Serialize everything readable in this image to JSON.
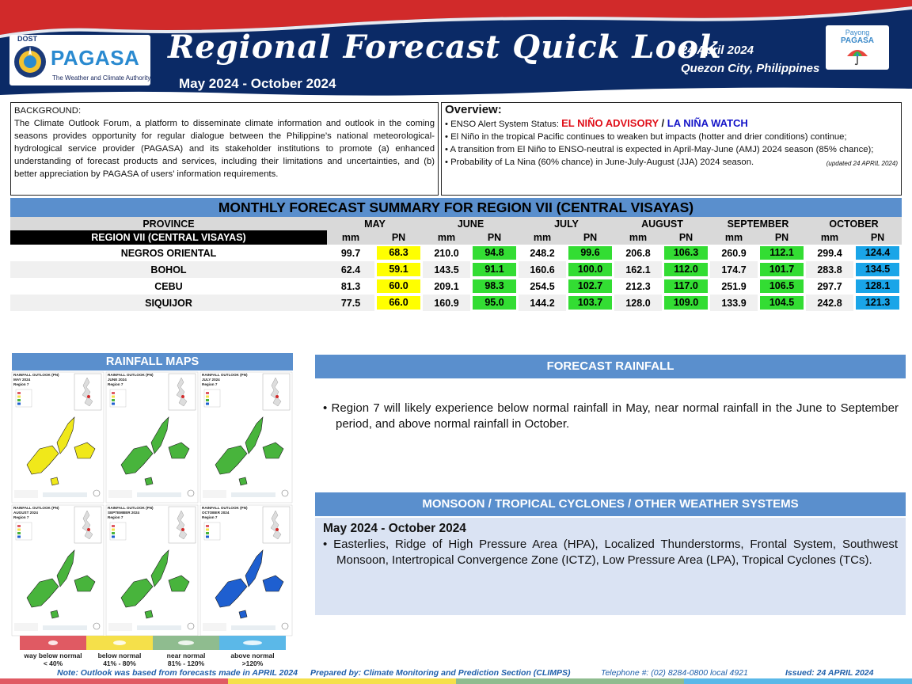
{
  "header": {
    "dost": "DOST",
    "pagasa": "PAGASA",
    "tagline": "The Weather and Climate Authority",
    "title": "Regional Forecast Quick Look",
    "period": "May 2024 - October 2024",
    "date": "24 April 2024",
    "place": "Quezon City, Philippines",
    "payong_line1": "Payong",
    "payong_line2": "PAGASA",
    "colors": {
      "navy": "#0b2a66",
      "red": "#d12a2a"
    }
  },
  "background": {
    "title": "BACKGROUND:",
    "text": "The Climate Outlook Forum, a platform to disseminate climate information and outlook in the coming seasons provides opportunity for regular dialogue between the Philippine’s national meteorological-hydrological service provider (PAGASA) and its stakeholder institutions to promote (a) enhanced understanding of forecast products and services, including their limitations and uncertainties, and (b) better appreciation by PAGASA of users’ information requirements."
  },
  "overview": {
    "title": "Overview:",
    "enso_prefix": "• ENSO Alert System Status: ",
    "enso_advisory": "EL NIÑO ADVISORY",
    "enso_sep": " / ",
    "enso_watch": "LA NIÑA WATCH",
    "bullet1": "• El Niño in the tropical Pacific continues to weaken but impacts (hotter and drier conditions) continue;",
    "bullet2": "• A transition from El Niño to ENSO-neutral is expected in April-May-June (AMJ) 2024 season (85% chance);",
    "bullet3": "• Probability of La Nina (60% chance) in June-July-August (JJA) 2024 season.",
    "updated": "(updated 24 APRIL 2024)"
  },
  "table": {
    "title": "MONTHLY FORECAST SUMMARY FOR REGION VII (CENTRAL VISAYAS)",
    "province_header": "PROVINCE",
    "region_label": "REGION VII (CENTRAL VISAYAS)",
    "mm_label": "mm",
    "pn_label": "PN",
    "months": [
      "MAY",
      "JUNE",
      "JULY",
      "AUGUST",
      "SEPTEMBER",
      "OCTOBER"
    ],
    "category_colors": {
      "below_normal": "#ffff00",
      "near_normal": "#33dd33",
      "above_normal": "#1aa5e8"
    },
    "rows": [
      {
        "province": "NEGROS ORIENTAL",
        "values": [
          [
            "99.7",
            "68.3",
            "below_normal"
          ],
          [
            "210.0",
            "94.8",
            "near_normal"
          ],
          [
            "248.2",
            "99.6",
            "near_normal"
          ],
          [
            "206.8",
            "106.3",
            "near_normal"
          ],
          [
            "260.9",
            "112.1",
            "near_normal"
          ],
          [
            "299.4",
            "124.4",
            "above_normal"
          ]
        ]
      },
      {
        "province": "BOHOL",
        "values": [
          [
            "62.4",
            "59.1",
            "below_normal"
          ],
          [
            "143.5",
            "91.1",
            "near_normal"
          ],
          [
            "160.6",
            "100.0",
            "near_normal"
          ],
          [
            "162.1",
            "112.0",
            "near_normal"
          ],
          [
            "174.7",
            "101.7",
            "near_normal"
          ],
          [
            "283.8",
            "134.5",
            "above_normal"
          ]
        ]
      },
      {
        "province": "CEBU",
        "values": [
          [
            "81.3",
            "60.0",
            "below_normal"
          ],
          [
            "209.1",
            "98.3",
            "near_normal"
          ],
          [
            "254.5",
            "102.7",
            "near_normal"
          ],
          [
            "212.3",
            "117.0",
            "near_normal"
          ],
          [
            "251.9",
            "106.5",
            "near_normal"
          ],
          [
            "297.7",
            "128.1",
            "above_normal"
          ]
        ]
      },
      {
        "province": "SIQUIJOR",
        "values": [
          [
            "77.5",
            "66.0",
            "below_normal"
          ],
          [
            "160.9",
            "95.0",
            "near_normal"
          ],
          [
            "144.2",
            "103.7",
            "near_normal"
          ],
          [
            "128.0",
            "109.0",
            "near_normal"
          ],
          [
            "133.9",
            "104.5",
            "near_normal"
          ],
          [
            "242.8",
            "121.3",
            "above_normal"
          ]
        ]
      }
    ]
  },
  "rainfall_maps": {
    "title": "RAINFALL MAPS",
    "maps": [
      {
        "line1": "RAINFALL OUTLOOK (PN)",
        "line2": "MAY 2024",
        "line3": "Region 7",
        "fill": "#f0e81a"
      },
      {
        "line1": "RAINFALL OUTLOOK (PN)",
        "line2": "JUNE 2024",
        "line3": "Region 7",
        "fill": "#48b43c"
      },
      {
        "line1": "RAINFALL OUTLOOK (PN)",
        "line2": "JULY 2024",
        "line3": "Region 7",
        "fill": "#48b43c"
      },
      {
        "line1": "RAINFALL OUTLOOK (PN)",
        "line2": "AUGUST 2024",
        "line3": "Region 7",
        "fill": "#48b43c"
      },
      {
        "line1": "RAINFALL OUTLOOK (PN)",
        "line2": "SEPTEMBER 2024",
        "line3": "Region 7",
        "fill": "#48b43c"
      },
      {
        "line1": "RAINFALL OUTLOOK (PN)",
        "line2": "OCTOBER 2024",
        "line3": "Region 7",
        "fill": "#1e5fd0"
      }
    ],
    "legend": [
      {
        "line1": "way below normal",
        "line2": "< 40%",
        "color": "#e05a63"
      },
      {
        "line1": "below normal",
        "line2": "41% - 80%",
        "color": "#f5e04a"
      },
      {
        "line1": "near normal",
        "line2": "81% - 120%",
        "color": "#8fbc8f"
      },
      {
        "line1": "above normal",
        "line2": ">120%",
        "color": "#5bb8e8"
      }
    ]
  },
  "forecast_rainfall": {
    "title": "FORECAST RAINFALL",
    "text": "•  Region 7 will likely experience below normal rainfall in May, near normal rainfall in the June to September period, and above normal rainfall in October."
  },
  "monsoon": {
    "title": "MONSOON  / TROPICAL CYCLONES / OTHER WEATHER SYSTEMS",
    "period": "May 2024 - October 2024",
    "text": "•  Easterlies, Ridge of High Pressure Area (HPA), Localized Thunderstorms, Frontal System, Southwest Monsoon, Intertropical Convergence Zone (ICTZ), Low Pressure Area (LPA), Tropical Cyclones (TCs)."
  },
  "footer": {
    "note": "Note: Outlook was based from forecasts made in APRIL 2024",
    "prepared": "Prepared by: Climate Monitoring and Prediction Section (CLIMPS)",
    "telephone": "Telephone #: (02) 8284-0800 local 4921",
    "issued": "Issued: 24 APRIL 2024"
  }
}
